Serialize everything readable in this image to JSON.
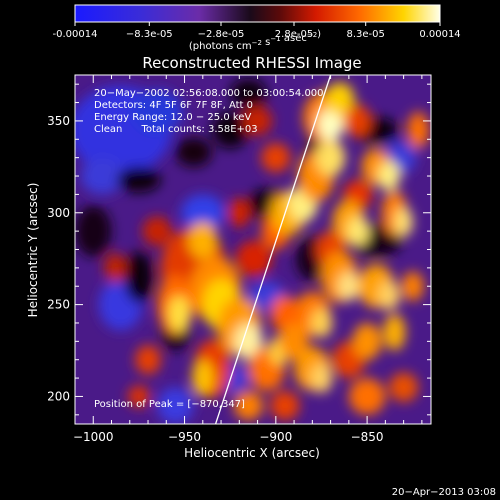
{
  "colorbar": {
    "tick_labels": [
      "-0.00014",
      "−8.3e-05",
      "−2.8e-05",
      "2.8e-05",
      "8.3e-05",
      "0.00014"
    ],
    "unit_label": "(photons cm",
    "unit_exp1": "−2",
    "unit_mid": " s",
    "unit_exp2": "−1",
    "unit_end": " asec",
    "unit_exp3": "−2",
    "unit_close": ")",
    "range": [
      -0.00014,
      0.00014
    ]
  },
  "chart_data": {
    "type": "heatmap",
    "title": "Reconstructed RHESSI Image",
    "xlabel": "Heliocentric X (arcsec)",
    "ylabel": "Heliocentric Y (arcsec)",
    "xlim": [
      -1010,
      -815
    ],
    "ylim": [
      185,
      375
    ],
    "xticks": [
      -1000,
      -950,
      -900,
      -850
    ],
    "yticks": [
      200,
      250,
      300,
      350
    ],
    "xtick_labels": [
      "−1000",
      "−950",
      "−900",
      "−850"
    ],
    "ytick_labels": [
      "200",
      "250",
      "300",
      "350"
    ],
    "colormap": "RHESSI color table: blue → purple → black → red → orange → yellow → white",
    "limb_line": [
      [
        -933,
        185
      ],
      [
        -870,
        375
      ]
    ],
    "peak": [
      -870,
      347
    ],
    "annotations": {
      "time": "20−May−2002 02:56:08.000 to 03:00:54.000",
      "detectors": "Detectors: 4F 5F 6F 7F 8F, Att 0",
      "energy": "Energy Range: 12.0 − 25.0 keV",
      "clean": "Clean      Total counts: 3.58E+03",
      "peak_label": "Position of Peak = [−870,347]"
    }
  },
  "footer": {
    "date": "20−Apr−2013 03:08"
  }
}
